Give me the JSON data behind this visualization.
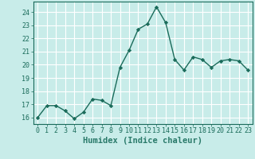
{
  "x": [
    0,
    1,
    2,
    3,
    4,
    5,
    6,
    7,
    8,
    9,
    10,
    11,
    12,
    13,
    14,
    15,
    16,
    17,
    18,
    19,
    20,
    21,
    22,
    23
  ],
  "y": [
    16.0,
    16.9,
    16.9,
    16.5,
    15.9,
    16.4,
    17.4,
    17.3,
    16.9,
    19.8,
    21.1,
    22.7,
    23.1,
    24.4,
    23.2,
    20.4,
    19.6,
    20.6,
    20.4,
    19.8,
    20.3,
    20.4,
    20.3,
    19.6
  ],
  "line_color": "#1a6b5a",
  "marker": "D",
  "marker_size": 2.2,
  "bg_color": "#c8ece9",
  "grid_color": "#ffffff",
  "xlabel": "Humidex (Indice chaleur)",
  "xlim": [
    -0.5,
    23.5
  ],
  "ylim": [
    15.5,
    24.8
  ],
  "yticks": [
    16,
    17,
    18,
    19,
    20,
    21,
    22,
    23,
    24
  ],
  "xticks": [
    0,
    1,
    2,
    3,
    4,
    5,
    6,
    7,
    8,
    9,
    10,
    11,
    12,
    13,
    14,
    15,
    16,
    17,
    18,
    19,
    20,
    21,
    22,
    23
  ],
  "tick_color": "#1a6b5a",
  "label_color": "#2a7a6a",
  "xlabel_fontsize": 7.5,
  "tick_fontsize": 6.0,
  "linewidth": 1.0
}
